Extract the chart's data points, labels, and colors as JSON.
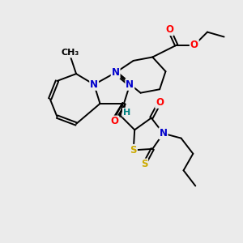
{
  "bg_color": "#ebebeb",
  "bond_color": "#000000",
  "bond_width": 1.4,
  "atom_colors": {
    "N": "#0000cc",
    "O": "#ff0000",
    "S": "#ccaa00",
    "H": "#008080",
    "C": "#000000"
  },
  "font_size": 8.5
}
